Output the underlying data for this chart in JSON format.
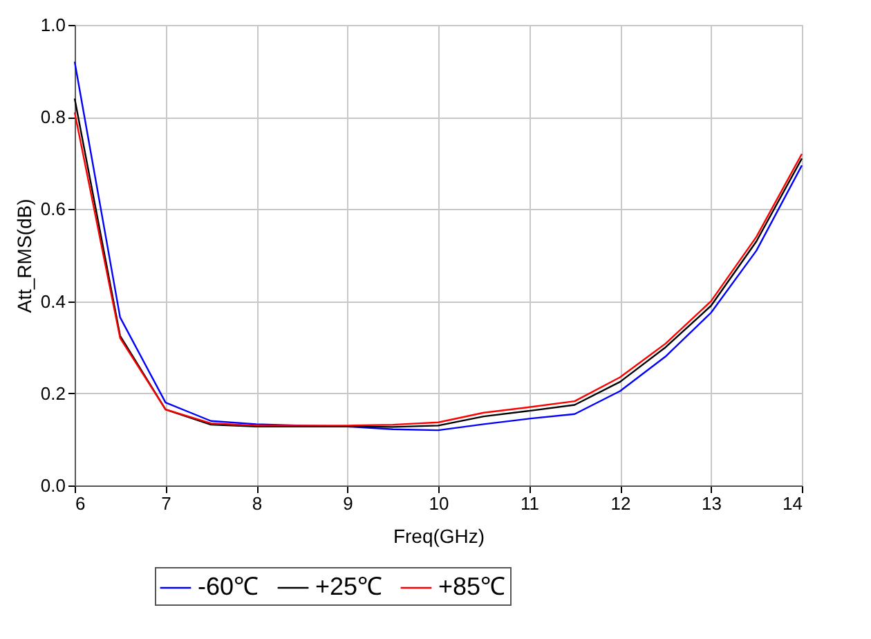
{
  "chart_data": {
    "type": "line",
    "xlabel": "Freq(GHz)",
    "ylabel": "Att_RMS(dB)",
    "x": [
      6,
      6.5,
      7,
      7.5,
      8,
      8.5,
      9,
      9.5,
      10,
      10.5,
      11,
      11.5,
      12,
      12.5,
      13,
      13.5,
      14
    ],
    "series": [
      {
        "name": "-60℃",
        "color": "#0000ff",
        "values": [
          0.92,
          0.365,
          0.18,
          0.14,
          0.133,
          0.13,
          0.128,
          0.122,
          0.12,
          0.133,
          0.145,
          0.155,
          0.205,
          0.28,
          0.375,
          0.51,
          0.695
        ]
      },
      {
        "name": "+25℃",
        "color": "#000000",
        "values": [
          0.84,
          0.325,
          0.165,
          0.132,
          0.128,
          0.128,
          0.128,
          0.127,
          0.13,
          0.15,
          0.162,
          0.175,
          0.225,
          0.3,
          0.39,
          0.53,
          0.71
        ]
      },
      {
        "name": "+85℃",
        "color": "#ff0000",
        "values": [
          0.81,
          0.32,
          0.165,
          0.135,
          0.13,
          0.13,
          0.13,
          0.132,
          0.137,
          0.158,
          0.17,
          0.183,
          0.235,
          0.308,
          0.4,
          0.54,
          0.72
        ]
      }
    ],
    "xlim": [
      6,
      14
    ],
    "xticks": [
      6,
      7,
      8,
      9,
      10,
      11,
      12,
      13,
      14
    ],
    "ylim": [
      0,
      1
    ],
    "yticks": [
      {
        "value": 0,
        "label": "0.0"
      },
      0.2,
      0.4,
      0.6,
      0.8,
      {
        "value": 1,
        "label": "1.0"
      }
    ],
    "grid": true,
    "legend": "bottom",
    "marker": "none",
    "line_style": "solid"
  }
}
